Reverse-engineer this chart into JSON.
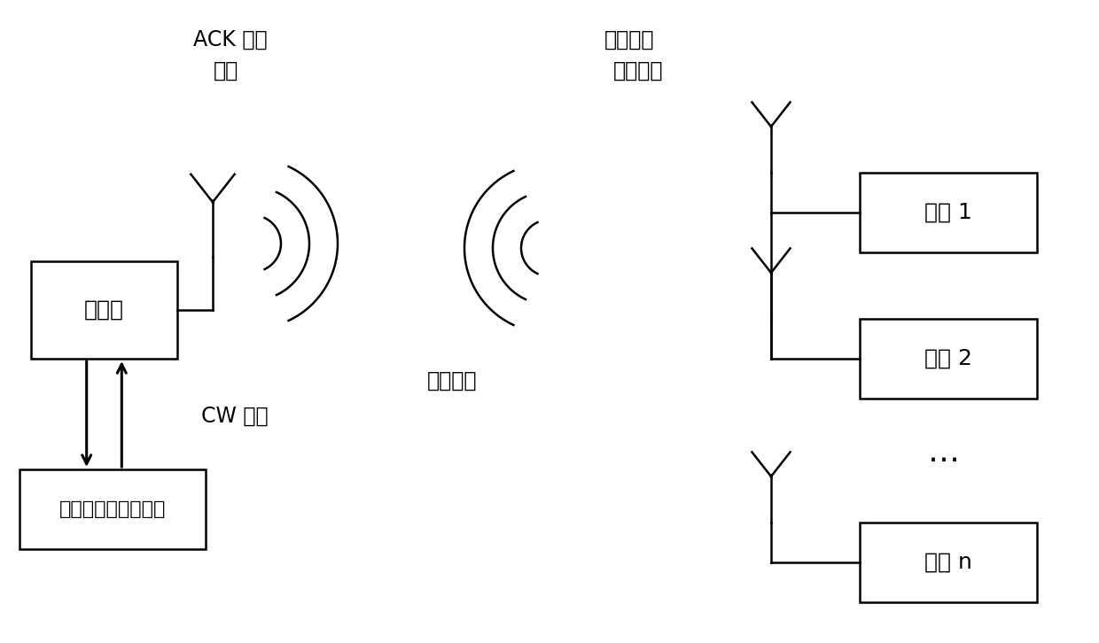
{
  "bg_color": "#ffffff",
  "line_color": "#000000",
  "box_color": "#ffffff",
  "font_size": 15,
  "reader_label": "读写器",
  "computer_label": "计算机数据管理系统",
  "tag1_label": "标签 1",
  "tag2_label": "标签 2",
  "tagn_label": "标签 n",
  "ack_line1": "ACK 调制",
  "ack_line2": "信号",
  "backscatter_line1": "反向散射",
  "backscatter_line2": "调制信号",
  "cw_label": "CW 载波",
  "channel_label": "传输信道",
  "dots_label": "⋯"
}
